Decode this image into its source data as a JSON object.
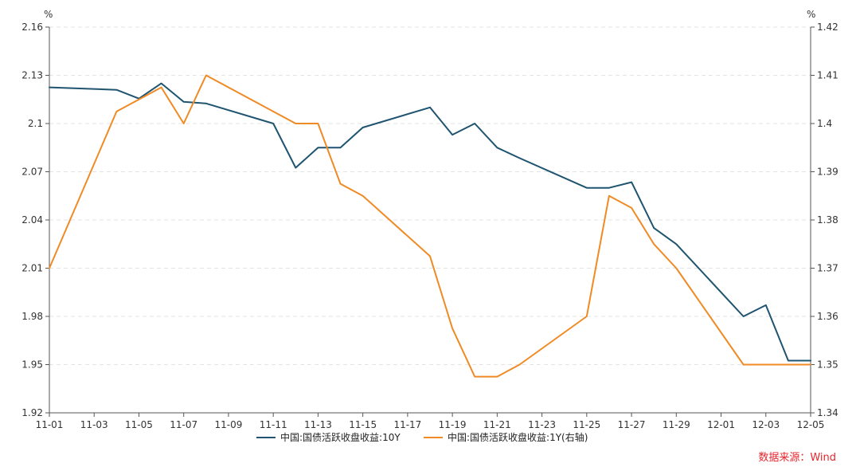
{
  "chart_data": {
    "type": "line",
    "title": "",
    "left_axis": {
      "unit": "%",
      "ylim": [
        1.92,
        2.16
      ],
      "ticks": [
        "2.16",
        "2.13",
        "2.1",
        "2.07",
        "2.04",
        "2.01",
        "1.98",
        "1.95",
        "1.92"
      ]
    },
    "right_axis": {
      "unit": "%",
      "ylim": [
        1.34,
        1.42
      ],
      "ticks": [
        "1.42",
        "1.41",
        "1.4",
        "1.39",
        "1.38",
        "1.37",
        "1.36",
        "1.35",
        "1.34"
      ]
    },
    "x_ticks": [
      "11-01",
      "11-03",
      "11-05",
      "11-07",
      "11-09",
      "11-11",
      "11-13",
      "11-15",
      "11-17",
      "11-19",
      "11-21",
      "11-23",
      "11-25",
      "11-27",
      "11-29",
      "12-01",
      "12-03",
      "12-05"
    ],
    "x_range_days": [
      0,
      34
    ],
    "grid": "horizontal dashed",
    "legend_position": "bottom",
    "series": [
      {
        "name": "中国:国债活跃收盘收益:10Y",
        "axis": "left",
        "color": "#1f5470",
        "points": [
          {
            "x": "11-01",
            "y": 2.1225
          },
          {
            "x": "11-04",
            "y": 2.121
          },
          {
            "x": "11-05",
            "y": 2.1155
          },
          {
            "x": "11-06",
            "y": 2.125
          },
          {
            "x": "11-07",
            "y": 2.1135
          },
          {
            "x": "11-08",
            "y": 2.1125
          },
          {
            "x": "11-11",
            "y": 2.1
          },
          {
            "x": "11-12",
            "y": 2.0725
          },
          {
            "x": "11-13",
            "y": 2.085
          },
          {
            "x": "11-14",
            "y": 2.085
          },
          {
            "x": "11-15",
            "y": 2.0975
          },
          {
            "x": "11-18",
            "y": 2.11
          },
          {
            "x": "11-19",
            "y": 2.093
          },
          {
            "x": "11-20",
            "y": 2.1
          },
          {
            "x": "11-21",
            "y": 2.085
          },
          {
            "x": "11-22",
            "y": 2.0785
          },
          {
            "x": "11-25",
            "y": 2.06
          },
          {
            "x": "11-26",
            "y": 2.06
          },
          {
            "x": "11-27",
            "y": 2.0635
          },
          {
            "x": "11-28",
            "y": 2.035
          },
          {
            "x": "11-29",
            "y": 2.025
          },
          {
            "x": "12-02",
            "y": 1.98
          },
          {
            "x": "12-03",
            "y": 1.987
          },
          {
            "x": "12-04",
            "y": 1.9525
          },
          {
            "x": "12-05",
            "y": 1.9525
          }
        ]
      },
      {
        "name": "中国:国债活跃收盘收益:1Y(右轴)",
        "axis": "right",
        "color": "#f08a24",
        "points": [
          {
            "x": "11-01",
            "y": 1.37
          },
          {
            "x": "11-04",
            "y": 1.4025
          },
          {
            "x": "11-06",
            "y": 1.4075
          },
          {
            "x": "11-07",
            "y": 1.4
          },
          {
            "x": "11-08",
            "y": 1.41
          },
          {
            "x": "11-12",
            "y": 1.4
          },
          {
            "x": "11-13",
            "y": 1.4
          },
          {
            "x": "11-14",
            "y": 1.3875
          },
          {
            "x": "11-15",
            "y": 1.385
          },
          {
            "x": "11-18",
            "y": 1.3725
          },
          {
            "x": "11-19",
            "y": 1.3575
          },
          {
            "x": "11-20",
            "y": 1.3475
          },
          {
            "x": "11-21",
            "y": 1.3475
          },
          {
            "x": "11-22",
            "y": 1.35
          },
          {
            "x": "11-25",
            "y": 1.36
          },
          {
            "x": "11-26",
            "y": 1.385
          },
          {
            "x": "11-27",
            "y": 1.3825
          },
          {
            "x": "11-28",
            "y": 1.375
          },
          {
            "x": "11-29",
            "y": 1.37
          },
          {
            "x": "12-02",
            "y": 1.35
          },
          {
            "x": "12-05",
            "y": 1.35
          }
        ]
      }
    ]
  },
  "source_note": "数据来源：Wind"
}
